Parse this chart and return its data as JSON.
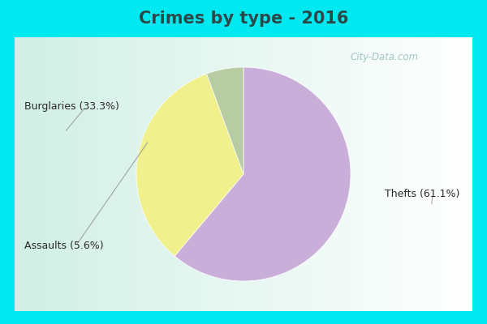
{
  "title": "Crimes by type - 2016",
  "slices": [
    {
      "label": "Thefts (61.1%)",
      "value": 61.1,
      "color": "#c9aed9"
    },
    {
      "label": "Burglaries (33.3%)",
      "value": 33.3,
      "color": "#f0f08c"
    },
    {
      "label": "Assaults (5.6%)",
      "value": 5.6,
      "color": "#b8cca3"
    }
  ],
  "background_top_color": "#00e8f0",
  "background_main_color": "#d0ede8",
  "title_fontsize": 15,
  "title_color": "#2a4a4a",
  "watermark": "City-Data.com",
  "watermark_color": "#90bcbc",
  "label_fontsize": 9,
  "label_color": "#2a2a2a",
  "top_bar_height": 0.115,
  "bottom_bar_height": 0.04,
  "side_bar_width": 0.03
}
